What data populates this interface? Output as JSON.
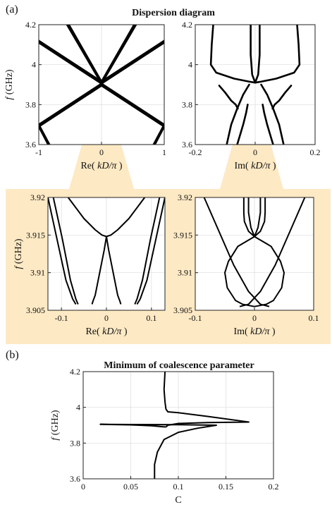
{
  "panel_labels": {
    "a": "(a)",
    "b": "(b)"
  },
  "highlight_color": "#fde9c4",
  "chart_data": [
    {
      "id": "re-full",
      "type": "line",
      "title": "Dispersion diagram",
      "xlabel_pre": "Re(",
      "xlabel_var": "kD/π",
      "xlabel_post": " )",
      "ylabel_var": "f",
      "ylabel_unit": " (GHz)",
      "xlim": [
        -1,
        1
      ],
      "ylim": [
        3.6,
        4.2
      ],
      "xticks": [
        -1,
        0,
        1
      ],
      "xtick_labels": [
        "-1",
        "0",
        "1"
      ],
      "yticks": [
        3.6,
        3.8,
        4.0,
        4.2
      ],
      "ytick_labels": [
        "3.6",
        "3.8",
        "4",
        "4.2"
      ],
      "grid": true,
      "series": [
        {
          "x": [
            -1,
            0
          ],
          "y": [
            4.11,
            3.905
          ]
        },
        {
          "x": [
            -1,
            0
          ],
          "y": [
            4.12,
            3.915
          ]
        },
        {
          "x": [
            0,
            1
          ],
          "y": [
            3.905,
            4.11
          ]
        },
        {
          "x": [
            0,
            1
          ],
          "y": [
            3.915,
            4.12
          ]
        },
        {
          "x": [
            -1,
            0
          ],
          "y": [
            3.7,
            3.905
          ]
        },
        {
          "x": [
            -1,
            0
          ],
          "y": [
            3.69,
            3.895
          ]
        },
        {
          "x": [
            0,
            1
          ],
          "y": [
            3.905,
            3.7
          ]
        },
        {
          "x": [
            0,
            1
          ],
          "y": [
            3.895,
            3.69
          ]
        },
        {
          "x": [
            -0.55,
            0
          ],
          "y": [
            4.2,
            3.905
          ]
        },
        {
          "x": [
            -0.52,
            0
          ],
          "y": [
            4.2,
            3.915
          ]
        },
        {
          "x": [
            0,
            0.55
          ],
          "y": [
            3.905,
            4.2
          ]
        },
        {
          "x": [
            0,
            0.52
          ],
          "y": [
            3.915,
            4.2
          ]
        },
        {
          "x": [
            -1,
            -0.85
          ],
          "y": [
            3.69,
            3.6
          ]
        },
        {
          "x": [
            -1,
            -0.83
          ],
          "y": [
            3.7,
            3.6
          ]
        },
        {
          "x": [
            0.85,
            1
          ],
          "y": [
            3.6,
            3.69
          ]
        },
        {
          "x": [
            0.83,
            1
          ],
          "y": [
            3.6,
            3.7
          ]
        }
      ]
    },
    {
      "id": "im-full",
      "type": "line",
      "xlabel_pre": "Im(",
      "xlabel_var": "kD/π",
      "xlabel_post": " )",
      "xlim": [
        -0.2,
        0.2
      ],
      "ylim": [
        3.6,
        4.2
      ],
      "xticks": [
        -0.2,
        0,
        0.2
      ],
      "xtick_labels": [
        "-0.2",
        "0",
        "0.2"
      ],
      "yticks": [
        3.6,
        3.8,
        4.0,
        4.2
      ],
      "ytick_labels": [
        "3.6",
        "3.8",
        "4",
        "4.2"
      ],
      "grid": true,
      "series": [
        {
          "x": [
            -0.14,
            -0.145,
            -0.148,
            -0.13,
            -0.07,
            -0.02,
            0
          ],
          "y": [
            4.2,
            4.1,
            4.0,
            3.96,
            3.93,
            3.915,
            3.91
          ]
        },
        {
          "x": [
            0.14,
            0.145,
            0.148,
            0.13,
            0.07,
            0.02,
            0
          ],
          "y": [
            4.2,
            4.1,
            4.0,
            3.96,
            3.93,
            3.915,
            3.91
          ]
        },
        {
          "x": [
            -0.12,
            -0.1,
            -0.08,
            -0.065,
            -0.058
          ],
          "y": [
            3.895,
            3.86,
            3.82,
            3.8,
            3.78
          ]
        },
        {
          "x": [
            0.12,
            0.1,
            0.08,
            0.065,
            0.058
          ],
          "y": [
            3.895,
            3.86,
            3.82,
            3.8,
            3.78
          ]
        },
        {
          "x": [
            -0.02,
            -0.04,
            -0.06,
            -0.08,
            -0.095
          ],
          "y": [
            3.9,
            3.85,
            3.78,
            3.7,
            3.6
          ]
        },
        {
          "x": [
            0.02,
            0.04,
            0.06,
            0.08,
            0.095
          ],
          "y": [
            3.9,
            3.85,
            3.78,
            3.7,
            3.6
          ]
        },
        {
          "x": [
            -0.015,
            -0.015,
            -0.01,
            0
          ],
          "y": [
            4.2,
            4.05,
            3.95,
            3.91
          ]
        },
        {
          "x": [
            0.015,
            0.015,
            0.01,
            0
          ],
          "y": [
            4.2,
            4.05,
            3.95,
            3.91
          ]
        },
        {
          "x": [
            -0.06,
            -0.05,
            -0.04,
            -0.03,
            -0.025
          ],
          "y": [
            3.6,
            3.65,
            3.7,
            3.76,
            3.8
          ]
        },
        {
          "x": [
            0.06,
            0.05,
            0.04,
            0.03,
            0.025
          ],
          "y": [
            3.6,
            3.65,
            3.7,
            3.76,
            3.8
          ]
        }
      ]
    },
    {
      "id": "re-zoom",
      "type": "line",
      "xlabel_pre": "Re(",
      "xlabel_var": "kD/π",
      "xlabel_post": " )",
      "ylabel_var": "f",
      "ylabel_unit": " (GHz)",
      "xlim": [
        -0.13,
        0.13
      ],
      "ylim": [
        3.905,
        3.92
      ],
      "xticks": [
        -0.1,
        0,
        0.1
      ],
      "xtick_labels": [
        "-0.1",
        "0",
        "0.1"
      ],
      "yticks": [
        3.905,
        3.91,
        3.915,
        3.92
      ],
      "ytick_labels": [
        "3.905",
        "3.91",
        "3.915",
        "3.92"
      ],
      "grid": true,
      "series": [
        {
          "x": [
            -0.085,
            -0.05,
            -0.025,
            -0.01,
            0,
            0.01,
            0.025,
            0.05,
            0.085
          ],
          "y": [
            3.92,
            3.9172,
            3.9157,
            3.915,
            3.9148,
            3.915,
            3.9157,
            3.9172,
            3.92
          ]
        },
        {
          "x": [
            -0.13,
            -0.11,
            -0.09,
            -0.075,
            -0.068
          ],
          "y": [
            3.92,
            3.9145,
            3.909,
            3.9065,
            3.9058
          ]
        },
        {
          "x": [
            0.13,
            0.11,
            0.09,
            0.075,
            0.068
          ],
          "y": [
            3.92,
            3.9145,
            3.909,
            3.9065,
            3.9058
          ]
        },
        {
          "x": [
            -0.118,
            -0.098,
            -0.08,
            -0.068,
            -0.063
          ],
          "y": [
            3.92,
            3.9145,
            3.909,
            3.9065,
            3.9058
          ]
        },
        {
          "x": [
            0.118,
            0.098,
            0.08,
            0.068,
            0.063
          ],
          "y": [
            3.92,
            3.9145,
            3.909,
            3.9065,
            3.9058
          ]
        },
        {
          "x": [
            0,
            -0.005,
            -0.015,
            -0.025,
            -0.03,
            -0.032
          ],
          "y": [
            3.9148,
            3.913,
            3.91,
            3.907,
            3.9062,
            3.9058
          ]
        },
        {
          "x": [
            0,
            0.005,
            0.015,
            0.025,
            0.03,
            0.032
          ],
          "y": [
            3.9148,
            3.913,
            3.91,
            3.907,
            3.9062,
            3.9058
          ]
        }
      ]
    },
    {
      "id": "im-zoom",
      "type": "line",
      "xlabel_pre": "Im(",
      "xlabel_var": "kD/π",
      "xlabel_post": " )",
      "xlim": [
        -0.1,
        0.1
      ],
      "ylim": [
        3.905,
        3.92
      ],
      "xticks": [
        -0.1,
        0,
        0.1
      ],
      "xtick_labels": [
        "-0.1",
        "0",
        "0.1"
      ],
      "yticks": [
        3.905,
        3.91,
        3.915,
        3.92
      ],
      "ytick_labels": [
        "3.905",
        "3.91",
        "3.915",
        "3.92"
      ],
      "grid": true,
      "series": [
        {
          "x": [
            -0.018,
            -0.018,
            -0.017,
            -0.01,
            0
          ],
          "y": [
            3.92,
            3.918,
            3.9168,
            3.9155,
            3.9148
          ]
        },
        {
          "x": [
            0.018,
            0.018,
            0.017,
            0.01,
            0
          ],
          "y": [
            3.92,
            3.918,
            3.9168,
            3.9155,
            3.9148
          ]
        },
        {
          "x": [
            -0.01,
            -0.01,
            -0.006,
            0
          ],
          "y": [
            3.92,
            3.918,
            3.916,
            3.9148
          ]
        },
        {
          "x": [
            0.01,
            0.01,
            0.006,
            0
          ],
          "y": [
            3.92,
            3.918,
            3.916,
            3.9148
          ]
        },
        {
          "x": [
            0,
            -0.028,
            -0.044,
            -0.05,
            -0.046,
            -0.032,
            -0.02,
            0
          ],
          "y": [
            3.9148,
            3.9135,
            3.9115,
            3.91,
            3.908,
            3.9063,
            3.9058,
            3.9055
          ]
        },
        {
          "x": [
            0,
            0.028,
            0.044,
            0.05,
            0.046,
            0.032,
            0.02,
            0
          ],
          "y": [
            3.9148,
            3.9135,
            3.9115,
            3.91,
            3.908,
            3.9063,
            3.9058,
            3.9055
          ]
        },
        {
          "x": [
            -0.085,
            -0.06,
            -0.035,
            -0.01,
            0.01,
            0.025
          ],
          "y": [
            3.92,
            3.9155,
            3.911,
            3.9075,
            3.9058,
            3.9055
          ]
        },
        {
          "x": [
            0.085,
            0.06,
            0.035,
            0.01,
            -0.01,
            -0.025
          ],
          "y": [
            3.92,
            3.9155,
            3.911,
            3.9075,
            3.9058,
            3.9055
          ]
        }
      ]
    },
    {
      "id": "coalescence",
      "type": "line",
      "title": "Minimum of coalescence parameter",
      "xlabel": "C",
      "ylabel_var": "f",
      "ylabel_unit": " (GHz)",
      "xlim": [
        0,
        0.2
      ],
      "ylim": [
        3.6,
        4.2
      ],
      "xticks": [
        0,
        0.05,
        0.1,
        0.15,
        0.2
      ],
      "xtick_labels": [
        "0",
        "0.05",
        "0.1",
        "0.15",
        "0.2"
      ],
      "yticks": [
        3.6,
        3.8,
        4.0,
        4.2
      ],
      "ytick_labels": [
        "3.6",
        "3.8",
        "4",
        "4.2"
      ],
      "grid": true,
      "series": [
        {
          "x": [
            0.086,
            0.085,
            0.086,
            0.087,
            0.089,
            0.1,
            0.13,
            0.174,
            0.13,
            0.1,
            0.089,
            0.087
          ],
          "y": [
            4.2,
            4.1,
            4.03,
            3.99,
            3.975,
            3.97,
            3.95,
            3.918,
            3.915,
            3.91,
            3.9,
            3.89
          ]
        },
        {
          "x": [
            0.087,
            0.082,
            0.072,
            0.05,
            0.018,
            0.05,
            0.1,
            0.14,
            0.12,
            0.1,
            0.085,
            0.078,
            0.075,
            0.075
          ],
          "y": [
            3.89,
            3.892,
            3.897,
            3.902,
            3.905,
            3.904,
            3.903,
            3.9,
            3.883,
            3.86,
            3.82,
            3.75,
            3.68,
            3.6
          ]
        }
      ]
    }
  ]
}
